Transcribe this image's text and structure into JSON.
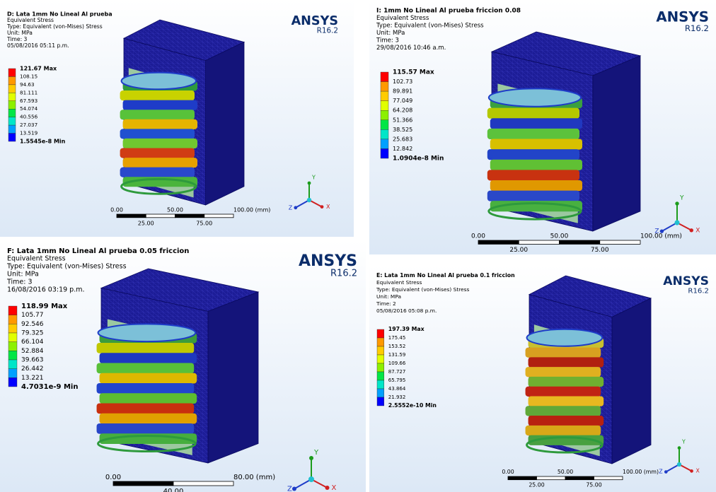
{
  "panels": [
    {
      "title": "D: Lata 1mm No Lineal Al prueba",
      "lines": [
        "Equivalent Stress",
        "Type: Equivalent (von-Mises) Stress",
        "Unit: MPa",
        "Time: 3",
        "05/08/2016 05:11 p.m."
      ],
      "brand": "ANSYS",
      "version": "R16.2",
      "legend": [
        "121.67 Max",
        "108.15",
        "94.63",
        "81.111",
        "67.593",
        "54.074",
        "40.556",
        "27.037",
        "13.519",
        "1.5545e-8 Min"
      ],
      "scale_top": [
        "0.00",
        "50.00",
        "100.00 (mm)"
      ],
      "scale_bottom": [
        "25.00",
        "75.00"
      ],
      "axes": [
        "Y",
        "Z",
        "X"
      ]
    },
    {
      "title": "I: 1mm No Lineal Al prueba friccion 0.08",
      "lines": [
        "Equivalent Stress",
        "Type: Equivalent (von-Mises) Stress",
        "Unit: MPa",
        "Time: 3",
        "29/08/2016 10:46 a.m."
      ],
      "brand": "ANSYS",
      "version": "R16.2",
      "legend": [
        "115.57 Max",
        "102.73",
        "89.891",
        "77.049",
        "64.208",
        "51.366",
        "38.525",
        "25.683",
        "12.842",
        "1.0904e-8 Min"
      ],
      "scale_top": [
        "0.00",
        "50.00",
        "100.00 (mm)"
      ],
      "scale_bottom": [
        "25.00",
        "75.00"
      ],
      "axes": [
        "Y",
        "Z",
        "X"
      ]
    },
    {
      "title": "F: Lata 1mm No Lineal Al prueba 0.05 friccion",
      "lines": [
        "Equivalent Stress",
        "Type: Equivalent (von-Mises) Stress",
        "Unit: MPa",
        "Time: 3",
        "16/08/2016 03:19 p.m."
      ],
      "brand": "ANSYS",
      "version": "R16.2",
      "legend": [
        "118.99 Max",
        "105.77",
        "92.546",
        "79.325",
        "66.104",
        "52.884",
        "39.663",
        "26.442",
        "13.221",
        "4.7031e-9 Min"
      ],
      "scale_top": [
        "0.00",
        "80.00 (mm)"
      ],
      "scale_bottom": [
        "40.00"
      ],
      "axes": [
        "Y",
        "Z",
        "X"
      ]
    },
    {
      "title": "E: Lata 1mm No Lineal Al prueba 0.1 friccion",
      "lines": [
        "Equivalent Stress",
        "Type: Equivalent (von-Mises) Stress",
        "Unit: MPa",
        "Time: 2",
        "05/08/2016 05:08 p.m."
      ],
      "brand": "ANSYS",
      "version": "R16.2",
      "legend": [
        "197.39 Max",
        "175.45",
        "153.52",
        "131.59",
        "109.66",
        "87.727",
        "65.795",
        "43.864",
        "21.932",
        "2.5552e-10 Min"
      ],
      "scale_top": [
        "0.00",
        "50.00",
        "100.00 (mm)"
      ],
      "scale_bottom": [
        "25.00",
        "75.00"
      ],
      "axes": [
        "Y",
        "Z",
        "X"
      ]
    }
  ]
}
